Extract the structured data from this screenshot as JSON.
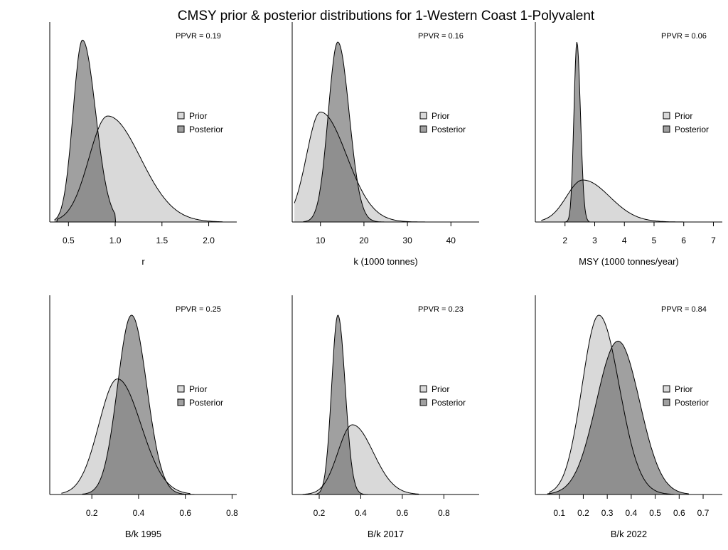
{
  "title": "CMSY prior & posterior distributions for 1-Western Coast 1-Polyvalent",
  "colors": {
    "prior": "#d9d9d9",
    "posterior": "#a0a0a0",
    "overlap": "#8f8f8f",
    "axis": "#000000"
  },
  "chart_data": [
    {
      "type": "area",
      "xlabel": "r",
      "ppvr": "PPVR = 0.19",
      "legend": [
        "Prior",
        "Posterior"
      ],
      "legend_position": "right",
      "xlim": [
        0.3,
        2.3
      ],
      "ticks": [
        0.5,
        1.0,
        1.5,
        2.0
      ],
      "tick_labels": [
        "0.5",
        "1.0",
        "1.5",
        "2.0"
      ],
      "prior": {
        "mode": 0.92,
        "peak": 0.53,
        "sd_left": 0.2,
        "sd_right": 0.35,
        "min": 0.38,
        "max": 2.15
      },
      "posterior": {
        "mode": 0.65,
        "peak": 0.91,
        "sd_left": 0.1,
        "sd_right": 0.14,
        "min": 0.35,
        "max": 1.0
      }
    },
    {
      "type": "area",
      "xlabel": "k (1000 tonnes)",
      "ppvr": "PPVR = 0.16",
      "legend": [
        "Prior",
        "Posterior"
      ],
      "legend_position": "right",
      "xlim": [
        3.5,
        46.5
      ],
      "ticks": [
        10,
        20,
        30,
        40
      ],
      "tick_labels": [
        "10",
        "20",
        "30",
        "40"
      ],
      "prior": {
        "mode": 10,
        "peak": 0.55,
        "sd_left": 3.2,
        "sd_right": 6.0,
        "min": 4,
        "max": 43
      },
      "posterior": {
        "mode": 14,
        "peak": 0.9,
        "sd_left": 2.2,
        "sd_right": 2.6,
        "min": 6,
        "max": 26
      }
    },
    {
      "type": "area",
      "xlabel": "MSY (1000 tonnes/year)",
      "ppvr": "PPVR = 0.06",
      "legend": [
        "Prior",
        "Posterior"
      ],
      "legend_position": "right",
      "xlim": [
        1.0,
        7.3
      ],
      "ticks": [
        2,
        3,
        4,
        5,
        6,
        7
      ],
      "tick_labels": [
        "2",
        "3",
        "4",
        "5",
        "6",
        "7"
      ],
      "prior": {
        "mode": 2.6,
        "peak": 0.21,
        "sd_left": 0.55,
        "sd_right": 0.9,
        "min": 1.2,
        "max": 6.7
      },
      "posterior": {
        "mode": 2.4,
        "peak": 0.9,
        "sd_left": 0.1,
        "sd_right": 0.12,
        "min": 2.0,
        "max": 2.8
      }
    },
    {
      "type": "area",
      "xlabel": "B/k 1995",
      "ppvr": "PPVR = 0.25",
      "legend": [
        "Prior",
        "Posterior"
      ],
      "legend_position": "right",
      "xlim": [
        0.02,
        0.82
      ],
      "ticks": [
        0.2,
        0.4,
        0.6,
        0.8
      ],
      "tick_labels": [
        "0.2",
        "0.4",
        "0.6",
        "0.8"
      ],
      "prior": {
        "mode": 0.31,
        "peak": 0.58,
        "sd_left": 0.08,
        "sd_right": 0.1,
        "min": 0.07,
        "max": 0.62
      },
      "posterior": {
        "mode": 0.37,
        "peak": 0.9,
        "sd_left": 0.06,
        "sd_right": 0.065,
        "min": 0.16,
        "max": 0.64
      }
    },
    {
      "type": "area",
      "xlabel": "B/k 2017",
      "ppvr": "PPVR = 0.23",
      "legend": [
        "Prior",
        "Posterior"
      ],
      "legend_position": "right",
      "xlim": [
        0.07,
        0.97
      ],
      "ticks": [
        0.2,
        0.4,
        0.6,
        0.8
      ],
      "tick_labels": [
        "0.2",
        "0.4",
        "0.6",
        "0.8"
      ],
      "prior": {
        "mode": 0.36,
        "peak": 0.35,
        "sd_left": 0.07,
        "sd_right": 0.1,
        "min": 0.12,
        "max": 0.68
      },
      "posterior": {
        "mode": 0.29,
        "peak": 0.9,
        "sd_left": 0.03,
        "sd_right": 0.035,
        "min": 0.18,
        "max": 0.5
      }
    },
    {
      "type": "area",
      "xlabel": "B/k 2022",
      "ppvr": "PPVR = 0.84",
      "legend": [
        "Prior",
        "Posterior"
      ],
      "legend_position": "right",
      "xlim": [
        0.0,
        0.78
      ],
      "ticks": [
        0.1,
        0.2,
        0.3,
        0.4,
        0.5,
        0.6,
        0.7
      ],
      "tick_labels": [
        "0.1",
        "0.2",
        "0.3",
        "0.4",
        "0.5",
        "0.6",
        "0.7"
      ],
      "prior": {
        "mode": 0.265,
        "peak": 0.9,
        "sd_left": 0.07,
        "sd_right": 0.085,
        "min": 0.06,
        "max": 0.58
      },
      "posterior": {
        "mode": 0.345,
        "peak": 0.77,
        "sd_left": 0.09,
        "sd_right": 0.09,
        "min": 0.05,
        "max": 0.64
      }
    }
  ]
}
